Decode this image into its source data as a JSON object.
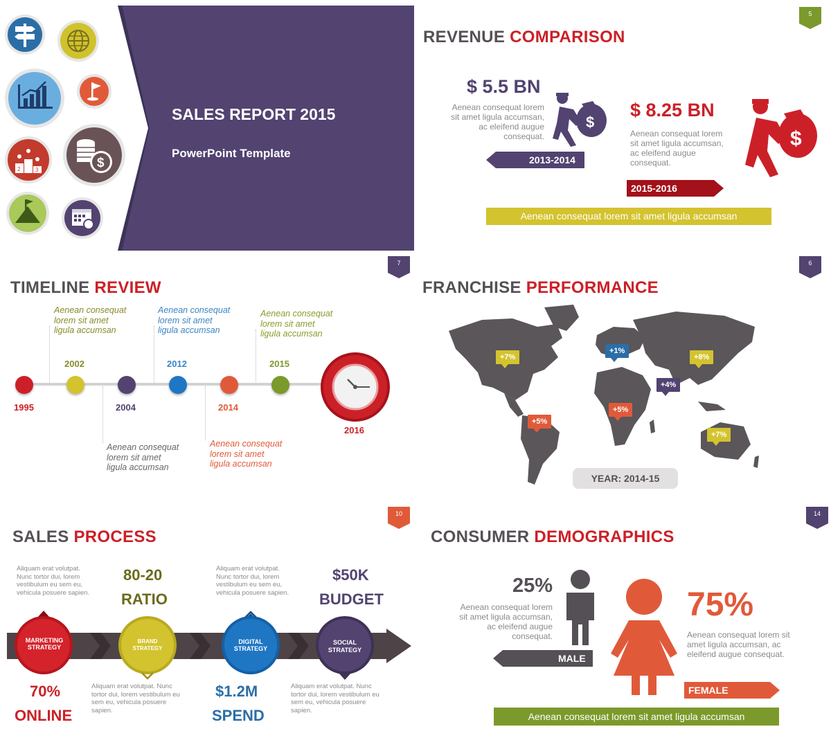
{
  "colors": {
    "purple": "#524370",
    "red": "#cc2028",
    "dark": "#555055",
    "olive": "#6b6a1c",
    "yellow": "#d3c32e",
    "blue": "#1f77c4",
    "orange": "#e05a3a",
    "green": "#7b9a2b"
  },
  "cover": {
    "title": "SALES REPORT 2015",
    "subtitle": "PowerPoint Template",
    "icons": [
      "signpost-icon",
      "globe-icon",
      "bar-chart-icon",
      "flag-icon",
      "podium-icon",
      "coins-dollar-icon",
      "mountain-flag-icon",
      "calendar-icon"
    ]
  },
  "revenue": {
    "badge": "5",
    "title_a": "REVENUE",
    "title_b": "COMPARISON",
    "left": {
      "amount": "$ 5.5 BN",
      "text": "Aenean consequat lorem sit amet ligula accumsan, ac eleifend augue consequat.",
      "period": "2013-2014"
    },
    "right": {
      "amount": "$ 8.25 BN",
      "text": "Aenean consequat lorem sit amet ligula accumsan, ac eleifend augue consequat.",
      "period": "2015-2016"
    },
    "footer": "Aenean consequat lorem sit amet ligula accumsan"
  },
  "timeline": {
    "badge": "7",
    "title_a": "TIMELINE",
    "title_b": "REVIEW",
    "years": [
      {
        "label": "1995",
        "color": "#cc2028"
      },
      {
        "label": "2002",
        "color": "#d3c32e"
      },
      {
        "label": "2004",
        "color": "#524370"
      },
      {
        "label": "2012",
        "color": "#1f77c4"
      },
      {
        "label": "2014",
        "color": "#e05a3a"
      },
      {
        "label": "2015",
        "color": "#7b9a2b"
      }
    ],
    "final_year": "2016",
    "notes": [
      "Aenean consequat lorem sit amet ligula accumsan",
      "Aenean consequat lorem sit amet ligula accumsan",
      "Aenean consequat lorem sit amet ligula accumsan",
      "Aenean consequat lorem sit amet ligula accumsan",
      "Aenean consequat lorem sit amet ligula accumsan"
    ]
  },
  "franchise": {
    "badge": "6",
    "title_a": "FRANCHISE",
    "title_b": "PERFORMANCE",
    "pins": [
      "+7%",
      "+1%",
      "+8%",
      "+4%",
      "+5%",
      "+5%",
      "+7%"
    ],
    "year": "YEAR: 2014-15"
  },
  "process": {
    "badge": "10",
    "title_a": "SALES",
    "title_b": "PROCESS",
    "top_text_1": "Aliquam erat volutpat. Nunc tortor dui, lorem vestibulum eu sem eu, vehicula posuere sapien.",
    "top_text_2": "Aliquam erat volutpat. Nunc tortor dui, lorem vestibulum eu sem eu, vehicula posuere sapien.",
    "bottom_text_1": "Aliquam erat volutpat. Nunc tortor dui, lorem vestibulum eu sem eu, vehicula posuere sapien.",
    "bottom_text_2": "Aliquam erat volutpat. Nunc tortor dui, lorem vestibulum eu sem eu, vehicula posuere sapien.",
    "stat_1": {
      "value": "80-20",
      "label": "RATIO"
    },
    "stat_2": {
      "value": "$50K",
      "label": "BUDGET"
    },
    "stat_3": {
      "value": "70%",
      "label": "ONLINE"
    },
    "stat_4": {
      "value": "$1.2M",
      "label": "SPEND"
    },
    "steps": [
      {
        "line1": "MARKETING",
        "line2": "STRATEGY"
      },
      {
        "line1": "BRAND",
        "line2": "STRATEGY"
      },
      {
        "line1": "DIGITAL",
        "line2": "STRATEGY"
      },
      {
        "line1": "SOCIAL",
        "line2": "STRATEGY"
      }
    ]
  },
  "demographics": {
    "badge": "14",
    "title_a": "CONSUMER",
    "title_b": "DEMOGRAPHICS",
    "male": {
      "percent": "25%",
      "text": "Aenean consequat lorem sit amet ligula accumsan, ac eleifend augue consequat.",
      "label": "MALE",
      "share": 0.25
    },
    "female": {
      "percent": "75%",
      "text": "Aenean consequat lorem sit amet ligula accumsan, ac eleifend augue consequat.",
      "label": "FEMALE",
      "share": 0.75
    },
    "footer": "Aenean consequat lorem sit amet ligula accumsan"
  }
}
